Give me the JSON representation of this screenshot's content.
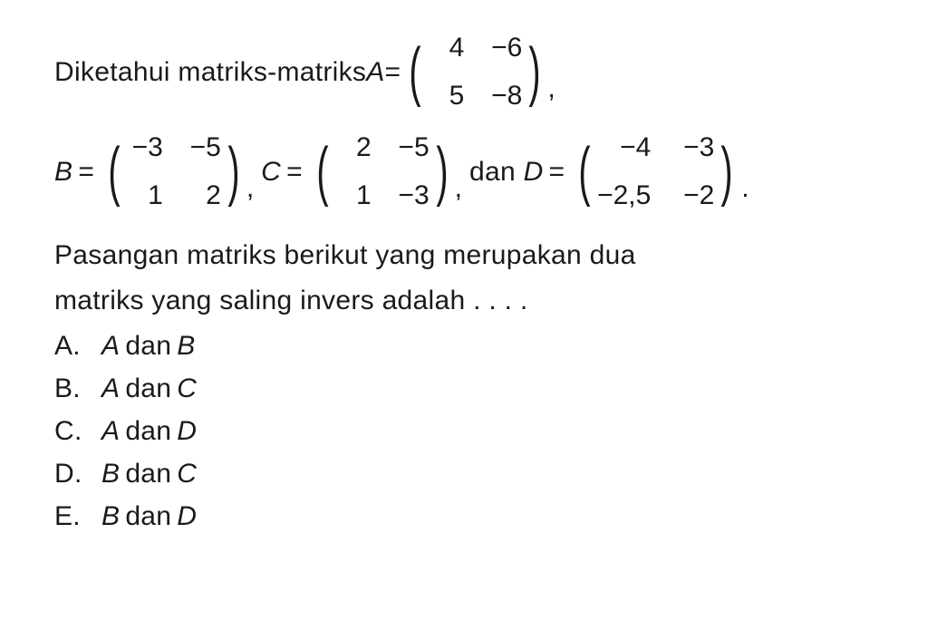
{
  "intro": {
    "prefix": "Diketahui matriks-matriks ",
    "varA": "A",
    "eq": " = "
  },
  "matrixA": {
    "a11": "4",
    "a12": "−6",
    "a21": "5",
    "a22": "−8"
  },
  "line2": {
    "varB": "B",
    "varC": "C",
    "varD": "D",
    "dan": "dan"
  },
  "matrixB": {
    "a11": "−3",
    "a12": "−5",
    "a21": "1",
    "a22": "2"
  },
  "matrixC": {
    "a11": "2",
    "a12": "−5",
    "a21": "1",
    "a22": "−3"
  },
  "matrixD": {
    "a11": "−4",
    "a12": "−3",
    "a21": "−2,5",
    "a22": "−2"
  },
  "question": {
    "line1": "Pasangan matriks berikut yang merupakan dua",
    "line2": "matriks yang saling invers adalah . . . ."
  },
  "options": {
    "A": {
      "letter": "A.",
      "v1": "A",
      "dan": " dan ",
      "v2": "B"
    },
    "B": {
      "letter": "B.",
      "v1": "A",
      "dan": " dan ",
      "v2": "C"
    },
    "C": {
      "letter": "C.",
      "v1": "A",
      "dan": " dan ",
      "v2": "D"
    },
    "D": {
      "letter": "D.",
      "v1": "B",
      "dan": " dan ",
      "v2": "C"
    },
    "E": {
      "letter": "E.",
      "v1": "B",
      "dan": " dan ",
      "v2": "D"
    }
  },
  "style": {
    "font_color": "#1a1a1a",
    "background_color": "#ffffff",
    "base_fontsize": 30,
    "matrix_fontsize": 30,
    "paren_fontsize": 72
  }
}
